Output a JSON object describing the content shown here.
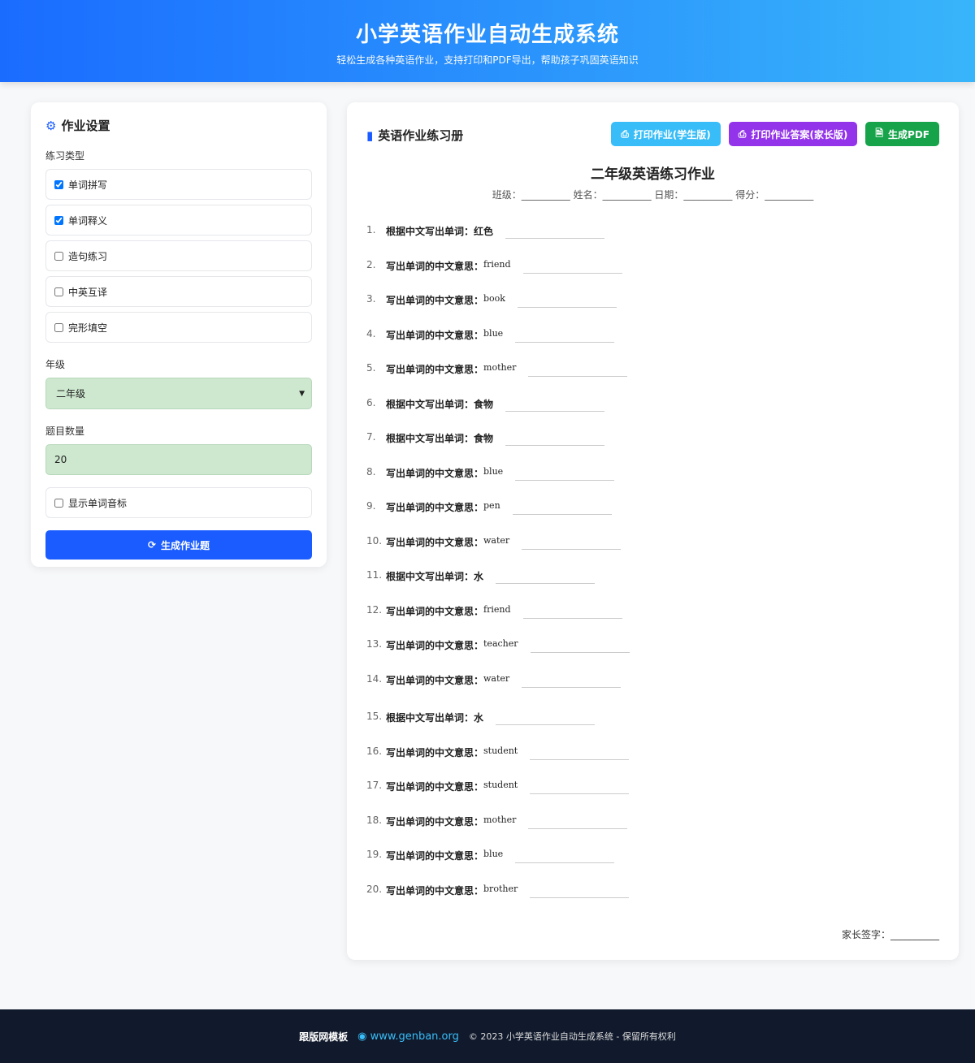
{
  "header": {
    "title": "小学英语作业自动生成系统",
    "subtitle": "轻松生成各种英语作业，支持打印和PDF导出，帮助孩子巩固英语知识"
  },
  "settings": {
    "title": "作业设置",
    "type_label": "练习类型",
    "types": [
      {
        "label": "单词拼写",
        "checked": true
      },
      {
        "label": "单词释义",
        "checked": true
      },
      {
        "label": "造句练习",
        "checked": false
      },
      {
        "label": "中英互译",
        "checked": false
      },
      {
        "label": "完形填空",
        "checked": false
      }
    ],
    "grade_label": "年级",
    "grade_value": "二年级",
    "count_label": "题目数量",
    "count_value": "20",
    "phonetic_label": "显示单词音标",
    "phonetic_checked": false,
    "generate_label": "生成作业题"
  },
  "workbook": {
    "title": "英语作业练习册",
    "print_student": "打印作业(学生版)",
    "print_answer": "打印作业答案(家长版)",
    "pdf": "生成PDF",
    "doc_title": "二年级英语练习作业",
    "meta": "班级：__________ 姓名：__________ 日期：__________ 得分：__________",
    "questions": [
      {
        "n": "1.",
        "p": "根据中文写出单词：",
        "w": "红色",
        "en": false
      },
      {
        "n": "2.",
        "p": "写出单词的中文意思：",
        "w": "friend",
        "en": true
      },
      {
        "n": "3.",
        "p": "写出单词的中文意思：",
        "w": "book",
        "en": true
      },
      {
        "n": "4.",
        "p": "写出单词的中文意思：",
        "w": "blue",
        "en": true
      },
      {
        "n": "5.",
        "p": "写出单词的中文意思：",
        "w": "mother",
        "en": true
      },
      {
        "n": "6.",
        "p": "根据中文写出单词：",
        "w": "食物",
        "en": false
      },
      {
        "n": "7.",
        "p": "根据中文写出单词：",
        "w": "食物",
        "en": false
      },
      {
        "n": "8.",
        "p": "写出单词的中文意思：",
        "w": "blue",
        "en": true
      },
      {
        "n": "9.",
        "p": "写出单词的中文意思：",
        "w": "pen",
        "en": true
      },
      {
        "n": "10.",
        "p": "写出单词的中文意思：",
        "w": "water",
        "en": true
      },
      {
        "n": "11.",
        "p": "根据中文写出单词：",
        "w": "水",
        "en": false
      },
      {
        "n": "12.",
        "p": "写出单词的中文意思：",
        "w": "friend",
        "en": true
      },
      {
        "n": "13.",
        "p": "写出单词的中文意思：",
        "w": "teacher",
        "en": true
      },
      {
        "n": "14.",
        "p": "写出单词的中文意思：",
        "w": "water",
        "en": true
      },
      {
        "n": "15.",
        "p": "根据中文写出单词：",
        "w": "水",
        "en": false
      },
      {
        "n": "16.",
        "p": "写出单词的中文意思：",
        "w": "student",
        "en": true
      },
      {
        "n": "17.",
        "p": "写出单词的中文意思：",
        "w": "student",
        "en": true
      },
      {
        "n": "18.",
        "p": "写出单词的中文意思：",
        "w": "mother",
        "en": true
      },
      {
        "n": "19.",
        "p": "写出单词的中文意思：",
        "w": "blue",
        "en": true
      },
      {
        "n": "20.",
        "p": "写出单词的中文意思：",
        "w": "brother",
        "en": true
      }
    ],
    "signature": "家长签字：__________"
  },
  "footer": {
    "brand": "跟版网模板",
    "link": "www.genban.org",
    "copyright": "© 2023 小学英语作业自动生成系统 - 保留所有权利"
  },
  "colors": {
    "primary": "#1a5cff",
    "print_student": "#38bdf8",
    "print_answer": "#9333ea",
    "pdf": "#16a34a",
    "footer_bg": "#111a2c"
  }
}
